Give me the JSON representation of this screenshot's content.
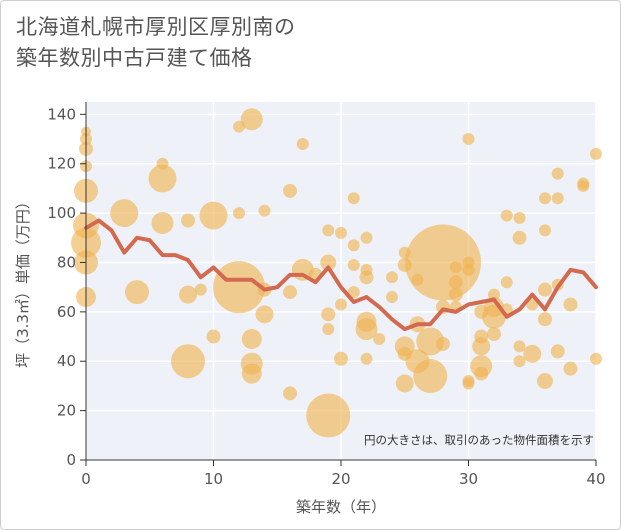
{
  "title": {
    "line1": "北海道札幌市厚別区厚別南の",
    "line2": "築年数別中古戸建て価格"
  },
  "colors": {
    "bubble": "#f0b350",
    "line": "#d36a50",
    "plot_bg": "#eef2f8",
    "grid": "#ffffff"
  },
  "chart_data": {
    "type": "scatter",
    "xlabel": "築年数（年）",
    "ylabel": "坪（3.3㎡）単価（万円）",
    "xlim": [
      0,
      40
    ],
    "ylim": [
      0,
      145
    ],
    "x_ticks": [
      "0",
      "10",
      "20",
      "30",
      "40"
    ],
    "y_ticks": [
      "0",
      "20",
      "40",
      "60",
      "80",
      "100",
      "120",
      "140"
    ],
    "x_tick_values": [
      0,
      10,
      20,
      30,
      40
    ],
    "y_tick_values": [
      0,
      20,
      40,
      60,
      80,
      100,
      120,
      140
    ],
    "note": "円の大きさは、取引のあった物件面積を示す",
    "bubbles": [
      {
        "x": 0,
        "y": 133,
        "s": 5
      },
      {
        "x": 0,
        "y": 130,
        "s": 6
      },
      {
        "x": 0,
        "y": 126,
        "s": 7
      },
      {
        "x": 0,
        "y": 119,
        "s": 6
      },
      {
        "x": 0,
        "y": 109,
        "s": 12
      },
      {
        "x": 0,
        "y": 95,
        "s": 13
      },
      {
        "x": 0,
        "y": 88,
        "s": 15
      },
      {
        "x": 0,
        "y": 80,
        "s": 12
      },
      {
        "x": 0,
        "y": 66,
        "s": 10
      },
      {
        "x": 3,
        "y": 100,
        "s": 14
      },
      {
        "x": 4,
        "y": 68,
        "s": 12
      },
      {
        "x": 6,
        "y": 120,
        "s": 6
      },
      {
        "x": 6,
        "y": 114,
        "s": 14
      },
      {
        "x": 6,
        "y": 96,
        "s": 11
      },
      {
        "x": 8,
        "y": 97,
        "s": 7
      },
      {
        "x": 8,
        "y": 67,
        "s": 9
      },
      {
        "x": 8,
        "y": 40,
        "s": 17
      },
      {
        "x": 9,
        "y": 69,
        "s": 6
      },
      {
        "x": 10,
        "y": 99,
        "s": 14
      },
      {
        "x": 10,
        "y": 50,
        "s": 7
      },
      {
        "x": 12,
        "y": 135,
        "s": 6
      },
      {
        "x": 12,
        "y": 100,
        "s": 6
      },
      {
        "x": 12,
        "y": 70,
        "s": 26
      },
      {
        "x": 13,
        "y": 138,
        "s": 11
      },
      {
        "x": 13,
        "y": 49,
        "s": 10
      },
      {
        "x": 13,
        "y": 39,
        "s": 11
      },
      {
        "x": 13,
        "y": 35,
        "s": 10
      },
      {
        "x": 14,
        "y": 101,
        "s": 6
      },
      {
        "x": 14,
        "y": 69,
        "s": 7
      },
      {
        "x": 14,
        "y": 59,
        "s": 9
      },
      {
        "x": 16,
        "y": 109,
        "s": 7
      },
      {
        "x": 16,
        "y": 68,
        "s": 7
      },
      {
        "x": 16,
        "y": 27,
        "s": 7
      },
      {
        "x": 17,
        "y": 128,
        "s": 6
      },
      {
        "x": 17,
        "y": 77,
        "s": 11
      },
      {
        "x": 18,
        "y": 75,
        "s": 7
      },
      {
        "x": 19,
        "y": 93,
        "s": 6
      },
      {
        "x": 19,
        "y": 80,
        "s": 8
      },
      {
        "x": 19,
        "y": 59,
        "s": 7
      },
      {
        "x": 19,
        "y": 53,
        "s": 6
      },
      {
        "x": 19,
        "y": 18,
        "s": 22
      },
      {
        "x": 20,
        "y": 92,
        "s": 6
      },
      {
        "x": 20,
        "y": 63,
        "s": 6
      },
      {
        "x": 20,
        "y": 41,
        "s": 7
      },
      {
        "x": 21,
        "y": 106,
        "s": 6
      },
      {
        "x": 21,
        "y": 87,
        "s": 6
      },
      {
        "x": 21,
        "y": 79,
        "s": 6
      },
      {
        "x": 21,
        "y": 68,
        "s": 6
      },
      {
        "x": 22,
        "y": 90,
        "s": 6
      },
      {
        "x": 22,
        "y": 77,
        "s": 6
      },
      {
        "x": 22,
        "y": 74,
        "s": 7
      },
      {
        "x": 22,
        "y": 56,
        "s": 10
      },
      {
        "x": 22,
        "y": 53,
        "s": 11
      },
      {
        "x": 22,
        "y": 41,
        "s": 6
      },
      {
        "x": 23,
        "y": 49,
        "s": 6
      },
      {
        "x": 24,
        "y": 74,
        "s": 6
      },
      {
        "x": 24,
        "y": 66,
        "s": 6
      },
      {
        "x": 25,
        "y": 84,
        "s": 6
      },
      {
        "x": 25,
        "y": 79,
        "s": 7
      },
      {
        "x": 25,
        "y": 46,
        "s": 10
      },
      {
        "x": 25,
        "y": 43,
        "s": 7
      },
      {
        "x": 25,
        "y": 31,
        "s": 9
      },
      {
        "x": 26,
        "y": 73,
        "s": 6
      },
      {
        "x": 26,
        "y": 40,
        "s": 12
      },
      {
        "x": 26,
        "y": 55,
        "s": 8
      },
      {
        "x": 27,
        "y": 48,
        "s": 14
      },
      {
        "x": 27,
        "y": 34,
        "s": 17
      },
      {
        "x": 28,
        "y": 80,
        "s": 38
      },
      {
        "x": 28,
        "y": 62,
        "s": 7
      },
      {
        "x": 28,
        "y": 47,
        "s": 7
      },
      {
        "x": 29,
        "y": 78,
        "s": 6
      },
      {
        "x": 29,
        "y": 72,
        "s": 7
      },
      {
        "x": 29,
        "y": 67,
        "s": 7
      },
      {
        "x": 29,
        "y": 62,
        "s": 6
      },
      {
        "x": 30,
        "y": 130,
        "s": 6
      },
      {
        "x": 30,
        "y": 80,
        "s": 6
      },
      {
        "x": 30,
        "y": 77,
        "s": 6
      },
      {
        "x": 30,
        "y": 32,
        "s": 6
      },
      {
        "x": 30,
        "y": 31,
        "s": 6
      },
      {
        "x": 31,
        "y": 60,
        "s": 7
      },
      {
        "x": 31,
        "y": 50,
        "s": 7
      },
      {
        "x": 31,
        "y": 46,
        "s": 9
      },
      {
        "x": 31,
        "y": 38,
        "s": 11
      },
      {
        "x": 31,
        "y": 35,
        "s": 7
      },
      {
        "x": 32,
        "y": 67,
        "s": 6
      },
      {
        "x": 32,
        "y": 62,
        "s": 10
      },
      {
        "x": 32,
        "y": 58,
        "s": 12
      },
      {
        "x": 32,
        "y": 51,
        "s": 7
      },
      {
        "x": 33,
        "y": 99,
        "s": 6
      },
      {
        "x": 33,
        "y": 72,
        "s": 6
      },
      {
        "x": 33,
        "y": 61,
        "s": 6
      },
      {
        "x": 34,
        "y": 98,
        "s": 6
      },
      {
        "x": 34,
        "y": 90,
        "s": 7
      },
      {
        "x": 34,
        "y": 46,
        "s": 6
      },
      {
        "x": 34,
        "y": 40,
        "s": 6
      },
      {
        "x": 35,
        "y": 63,
        "s": 6
      },
      {
        "x": 35,
        "y": 43,
        "s": 9
      },
      {
        "x": 36,
        "y": 106,
        "s": 6
      },
      {
        "x": 36,
        "y": 93,
        "s": 6
      },
      {
        "x": 36,
        "y": 69,
        "s": 7
      },
      {
        "x": 36,
        "y": 57,
        "s": 7
      },
      {
        "x": 36,
        "y": 32,
        "s": 8
      },
      {
        "x": 37,
        "y": 116,
        "s": 6
      },
      {
        "x": 37,
        "y": 106,
        "s": 6
      },
      {
        "x": 37,
        "y": 71,
        "s": 6
      },
      {
        "x": 37,
        "y": 44,
        "s": 7
      },
      {
        "x": 38,
        "y": 63,
        "s": 7
      },
      {
        "x": 38,
        "y": 37,
        "s": 7
      },
      {
        "x": 39,
        "y": 112,
        "s": 6
      },
      {
        "x": 39,
        "y": 111,
        "s": 6
      },
      {
        "x": 40,
        "y": 124,
        "s": 6
      },
      {
        "x": 40,
        "y": 41,
        "s": 6
      }
    ],
    "trend": {
      "x": [
        0,
        1,
        2,
        3,
        4,
        5,
        6,
        7,
        8,
        9,
        10,
        11,
        12,
        13,
        14,
        15,
        16,
        17,
        18,
        19,
        20,
        21,
        22,
        23,
        24,
        25,
        26,
        27,
        28,
        29,
        30,
        31,
        32,
        33,
        34,
        35,
        36,
        37,
        38,
        39,
        40
      ],
      "y": [
        94,
        97,
        93,
        84,
        90,
        89,
        83,
        83,
        81,
        74,
        78,
        73,
        73,
        73,
        69,
        70,
        75,
        75,
        72,
        78,
        70,
        64,
        66,
        62,
        57,
        53,
        55,
        55,
        61,
        60,
        63,
        64,
        65,
        58,
        61,
        67,
        61,
        70,
        77,
        76,
        70
      ]
    }
  }
}
